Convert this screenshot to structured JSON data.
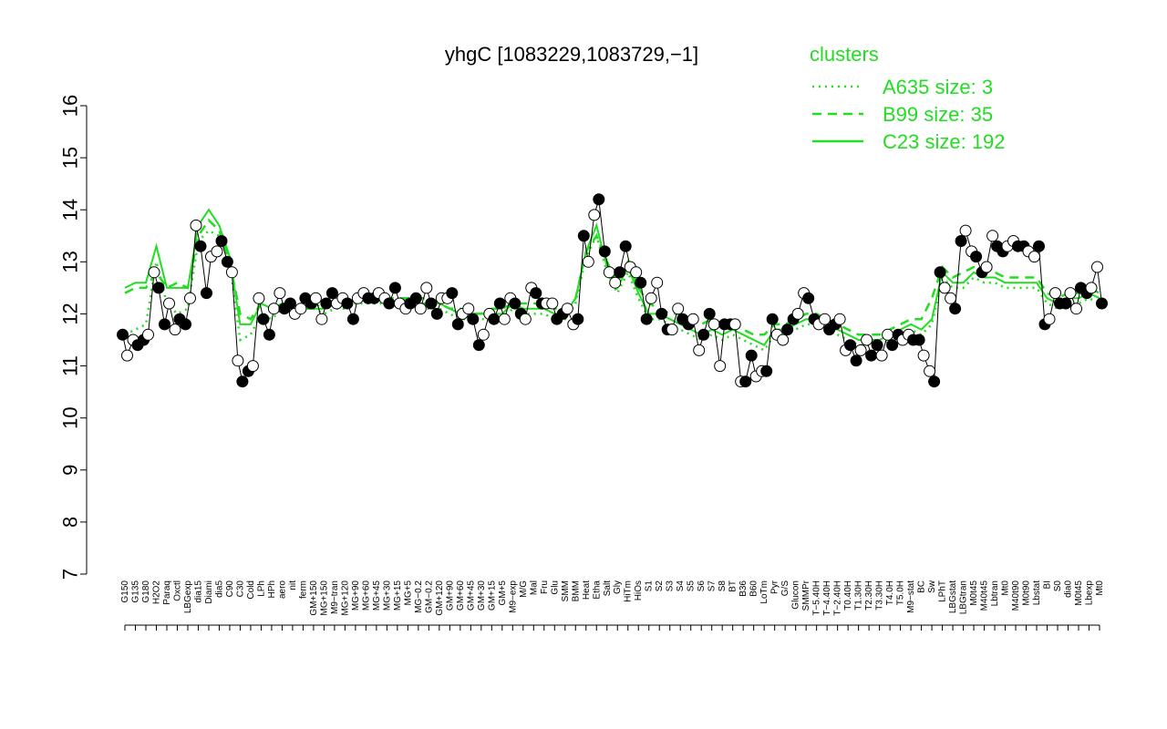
{
  "chart_data": {
    "type": "line",
    "title": "yhgC [1083229,1083729,−1]",
    "xlabel": "",
    "ylabel": "",
    "ylim": [
      7,
      16
    ],
    "yticks": [
      7,
      8,
      9,
      10,
      11,
      12,
      13,
      14,
      15,
      16
    ],
    "grid": false,
    "legend": {
      "title": "clusters",
      "placement": "top-right",
      "entries": [
        {
          "label": "A635 size: 3",
          "style": "dotted",
          "color": "#22dd22"
        },
        {
          "label": "B99 size: 35",
          "style": "dashed",
          "color": "#22dd22"
        },
        {
          "label": "C23 size: 192",
          "style": "solid",
          "color": "#22dd22"
        }
      ]
    },
    "x_tick_labels": [
      "G150",
      "G135",
      "G180",
      "H2O2",
      "Paraq",
      "Oxctl",
      "LBGexp",
      "dia15",
      "Diami",
      "dia5",
      "C90",
      "C30",
      "Cold",
      "LPh",
      "HPh",
      "aero",
      "nit",
      "ferm",
      "GM+150",
      "MG+150",
      "M9−tran",
      "MG+120",
      "MG+90",
      "MG+60",
      "MG+45",
      "MG+30",
      "MG+15",
      "MG+5",
      "MG−0.2",
      "GM−0.2",
      "GM+120",
      "GM+90",
      "GM+60",
      "GM+45",
      "GM+30",
      "GM+15",
      "GM+5",
      "M9−exp",
      "M/G",
      "Mal",
      "Fru",
      "Glu",
      "SMM",
      "BMM",
      "Heat",
      "Etha",
      "Salt",
      "Gly",
      "HiTm",
      "HiOs",
      "S1",
      "S2",
      "S3",
      "S4",
      "S5",
      "S6",
      "S7",
      "S8",
      "BT",
      "B36",
      "B60",
      "LoTm",
      "Pyr",
      "G/S",
      "Glucon",
      "SMMPr",
      "T−5.40H",
      "T−4.40H",
      "T−2.40H",
      "T0.40H",
      "T1.30H",
      "T2.30H",
      "T3.30H",
      "T4.0H",
      "T5.0H",
      "M9−stat",
      "BC",
      "Sw",
      "LPhT",
      "LBGstat",
      "LBGtran",
      "M0t45",
      "M40t45",
      "Lbtran",
      "Mt0",
      "M40t90",
      "M0t90",
      "Lbstat",
      "BI",
      "S0",
      "dia0",
      "M0t45",
      "Lbexp",
      "Mt0"
    ],
    "series": [
      {
        "name": "C23 size: 192",
        "style": "solid",
        "values": [
          12.5,
          12.6,
          12.6,
          13.3,
          12.5,
          12.5,
          12.5,
          13.7,
          14.0,
          13.7,
          13.1,
          11.8,
          11.8,
          12.2,
          12.1,
          12.2,
          12.0,
          12.1,
          12.1,
          12.1,
          12.2,
          12.2,
          12.3,
          12.3,
          12.3,
          12.3,
          12.2,
          12.3,
          12.2,
          12.2,
          12.2,
          12.1,
          12.0,
          12.0,
          12.0,
          12.0,
          12.0,
          12.2,
          12.1,
          12.1,
          12.1,
          12.0,
          12.0,
          12.3,
          13.2,
          13.7,
          12.9,
          12.5,
          12.9,
          12.4,
          12.0,
          12.0,
          11.9,
          11.8,
          11.7,
          11.6,
          11.7,
          11.6,
          11.7,
          11.6,
          11.5,
          11.4,
          11.7,
          11.7,
          11.8,
          11.9,
          11.9,
          11.8,
          11.7,
          11.6,
          11.5,
          11.5,
          11.5,
          11.6,
          11.7,
          11.8,
          11.7,
          11.9,
          12.8,
          12.6,
          12.6,
          12.8,
          12.7,
          12.7,
          12.6,
          12.6,
          12.6,
          12.6,
          12.3,
          12.2,
          12.3,
          12.3,
          12.4,
          12.3
        ]
      },
      {
        "name": "B99 size: 35",
        "style": "dashed",
        "values": [
          12.4,
          12.5,
          12.5,
          12.8,
          12.5,
          12.6,
          12.5,
          13.5,
          13.8,
          13.6,
          13.0,
          12.0,
          11.9,
          12.2,
          12.1,
          12.2,
          12.1,
          12.2,
          12.2,
          12.1,
          12.2,
          12.2,
          12.3,
          12.3,
          12.3,
          12.3,
          12.3,
          12.3,
          12.3,
          12.3,
          12.2,
          12.1,
          12.1,
          12.0,
          12.0,
          12.1,
          12.1,
          12.2,
          12.2,
          12.2,
          12.2,
          12.1,
          12.1,
          12.3,
          13.2,
          13.5,
          13.0,
          12.6,
          13.0,
          12.5,
          12.2,
          12.1,
          12.0,
          12.0,
          11.9,
          11.8,
          11.9,
          11.8,
          11.8,
          11.7,
          11.6,
          11.6,
          11.8,
          11.8,
          11.9,
          12.0,
          12.0,
          11.9,
          11.8,
          11.7,
          11.6,
          11.6,
          11.6,
          11.7,
          11.8,
          11.9,
          11.9,
          12.3,
          12.9,
          12.7,
          12.8,
          12.9,
          12.8,
          12.8,
          12.7,
          12.7,
          12.7,
          12.7,
          12.4,
          12.3,
          12.4,
          12.4,
          12.5,
          12.4
        ]
      },
      {
        "name": "A635 size: 3",
        "style": "dotted",
        "values": [
          11.6,
          11.7,
          11.8,
          13.0,
          12.2,
          12.0,
          12.1,
          13.4,
          13.6,
          13.5,
          13.0,
          11.5,
          11.6,
          12.0,
          11.9,
          12.1,
          12.0,
          12.1,
          12.1,
          12.0,
          12.1,
          12.1,
          12.2,
          12.2,
          12.2,
          12.2,
          12.1,
          12.2,
          12.1,
          12.1,
          12.1,
          12.0,
          11.9,
          11.9,
          11.9,
          11.9,
          11.9,
          12.1,
          12.0,
          12.0,
          12.0,
          11.9,
          11.9,
          12.2,
          13.1,
          13.5,
          12.8,
          12.4,
          12.8,
          12.3,
          11.9,
          11.9,
          11.8,
          11.7,
          11.6,
          11.5,
          11.6,
          11.5,
          11.6,
          11.5,
          11.4,
          11.3,
          11.6,
          11.6,
          11.7,
          11.8,
          11.8,
          11.7,
          11.6,
          11.5,
          11.4,
          11.4,
          11.4,
          11.5,
          11.6,
          11.7,
          11.6,
          11.8,
          12.7,
          12.5,
          12.5,
          12.7,
          12.6,
          12.6,
          12.5,
          12.5,
          12.5,
          12.5,
          12.2,
          12.1,
          12.2,
          12.2,
          12.3,
          12.2
        ]
      }
    ],
    "points": [
      {
        "label": "G150",
        "values": [
          11.6,
          11.2
        ]
      },
      {
        "label": "G135",
        "values": [
          11.5,
          11.4
        ]
      },
      {
        "label": "G180",
        "values": [
          11.5,
          11.6
        ]
      },
      {
        "label": "H2O2",
        "values": [
          12.8,
          12.5
        ]
      },
      {
        "label": "Paraq",
        "values": [
          11.8,
          12.2
        ]
      },
      {
        "label": "Oxctl",
        "values": [
          11.7,
          11.9
        ]
      },
      {
        "label": "LBGexp",
        "values": [
          11.8,
          12.3
        ]
      },
      {
        "label": "dia15",
        "values": [
          13.7,
          13.3
        ]
      },
      {
        "label": "Diami",
        "values": [
          12.4,
          13.1
        ]
      },
      {
        "label": "dia5",
        "values": [
          13.2,
          13.4
        ]
      },
      {
        "label": "C90",
        "values": [
          13.0,
          12.8
        ]
      },
      {
        "label": "C30",
        "values": [
          11.1,
          10.7
        ]
      },
      {
        "label": "Cold",
        "values": [
          10.9,
          11.0
        ]
      },
      {
        "label": "LPh",
        "values": [
          12.3,
          11.9
        ]
      },
      {
        "label": "HPh",
        "values": [
          11.6,
          12.1
        ]
      },
      {
        "label": "aero",
        "values": [
          12.4,
          12.1
        ]
      },
      {
        "label": "nit",
        "values": [
          12.2,
          12.0
        ]
      },
      {
        "label": "ferm",
        "values": [
          12.1,
          12.3
        ]
      },
      {
        "label": "GM+150",
        "values": [
          12.2,
          12.3
        ]
      },
      {
        "label": "MG+150",
        "values": [
          11.9,
          12.2
        ]
      },
      {
        "label": "M9−tran",
        "values": [
          12.4,
          12.2
        ]
      },
      {
        "label": "MG+120",
        "values": [
          12.3,
          12.2
        ]
      },
      {
        "label": "MG+90",
        "values": [
          11.9,
          12.3
        ]
      },
      {
        "label": "MG+60",
        "values": [
          12.4,
          12.3
        ]
      },
      {
        "label": "MG+45",
        "values": [
          12.3,
          12.4
        ]
      },
      {
        "label": "MG+30",
        "values": [
          12.3,
          12.2
        ]
      },
      {
        "label": "MG+15",
        "values": [
          12.5,
          12.2
        ]
      },
      {
        "label": "MG+5",
        "values": [
          12.1,
          12.2
        ]
      },
      {
        "label": "MG−0.2",
        "values": [
          12.3,
          12.1
        ]
      },
      {
        "label": "GM−0.2",
        "values": [
          12.5,
          12.2
        ]
      },
      {
        "label": "GM+120",
        "values": [
          12.0,
          12.3
        ]
      },
      {
        "label": "GM+90",
        "values": [
          12.3,
          12.4
        ]
      },
      {
        "label": "GM+60",
        "values": [
          11.8,
          12.0
        ]
      },
      {
        "label": "GM+45",
        "values": [
          12.1,
          11.9
        ]
      },
      {
        "label": "GM+30",
        "values": [
          11.4,
          11.6
        ]
      },
      {
        "label": "GM+15",
        "values": [
          12.0,
          11.9
        ]
      },
      {
        "label": "GM+5",
        "values": [
          12.2,
          11.9
        ]
      },
      {
        "label": "M9−exp",
        "values": [
          12.3,
          12.2
        ]
      },
      {
        "label": "M/G",
        "values": [
          12.0,
          11.9
        ]
      },
      {
        "label": "Mal",
        "values": [
          12.5,
          12.4
        ]
      },
      {
        "label": "Fru",
        "values": [
          12.2,
          12.2
        ]
      },
      {
        "label": "Glu",
        "values": [
          12.2,
          11.9
        ]
      },
      {
        "label": "SMM",
        "values": [
          12.0,
          12.1
        ]
      },
      {
        "label": "BMM",
        "values": [
          11.8,
          11.9
        ]
      },
      {
        "label": "Heat",
        "values": [
          13.5,
          13.0
        ]
      },
      {
        "label": "Etha",
        "values": [
          13.9,
          14.2
        ]
      },
      {
        "label": "Salt",
        "values": [
          13.2,
          12.8
        ]
      },
      {
        "label": "Gly",
        "values": [
          12.6,
          12.8
        ]
      },
      {
        "label": "HiTm",
        "values": [
          13.3,
          12.9
        ]
      },
      {
        "label": "HiOs",
        "values": [
          12.8,
          12.6
        ]
      },
      {
        "label": "S1",
        "values": [
          11.9,
          12.3
        ]
      },
      {
        "label": "S2",
        "values": [
          12.6,
          12.0
        ]
      },
      {
        "label": "S3",
        "values": [
          11.7,
          11.7
        ]
      },
      {
        "label": "S4",
        "values": [
          12.1,
          11.9
        ]
      },
      {
        "label": "S5",
        "values": [
          11.8,
          11.9
        ]
      },
      {
        "label": "S6",
        "values": [
          11.3,
          11.6
        ]
      },
      {
        "label": "S7",
        "values": [
          12.0,
          11.8
        ]
      },
      {
        "label": "S8",
        "values": [
          11.0,
          11.8
        ]
      },
      {
        "label": "BT",
        "values": [
          11.8,
          11.8
        ]
      },
      {
        "label": "B36",
        "values": [
          10.7,
          10.7
        ]
      },
      {
        "label": "B60",
        "values": [
          11.2,
          10.8
        ]
      },
      {
        "label": "LoTm",
        "values": [
          10.9,
          10.9
        ]
      },
      {
        "label": "Pyr",
        "values": [
          11.9,
          11.6
        ]
      },
      {
        "label": "G/S",
        "values": [
          11.5,
          11.7
        ]
      },
      {
        "label": "Glucon",
        "values": [
          11.9,
          12.0
        ]
      },
      {
        "label": "SMMPr",
        "values": [
          12.4,
          12.3
        ]
      },
      {
        "label": "T−5.40H",
        "values": [
          11.9,
          11.8
        ]
      },
      {
        "label": "T−4.40H",
        "values": [
          11.9,
          11.7
        ]
      },
      {
        "label": "T−2.40H",
        "values": [
          11.8,
          11.9
        ]
      },
      {
        "label": "T0.40H",
        "values": [
          11.3,
          11.4
        ]
      },
      {
        "label": "T1.30H",
        "values": [
          11.1,
          11.3
        ]
      },
      {
        "label": "T2.30H",
        "values": [
          11.5,
          11.2
        ]
      },
      {
        "label": "T3.30H",
        "values": [
          11.4,
          11.2
        ]
      },
      {
        "label": "T4.0H",
        "values": [
          11.6,
          11.4
        ]
      },
      {
        "label": "T5.0H",
        "values": [
          11.6,
          11.5
        ]
      },
      {
        "label": "M9−stat",
        "values": [
          11.6,
          11.5
        ]
      },
      {
        "label": "BC",
        "values": [
          11.5,
          11.2
        ]
      },
      {
        "label": "Sw",
        "values": [
          10.9,
          10.7
        ]
      },
      {
        "label": "LPhT",
        "values": [
          12.8,
          12.5
        ]
      },
      {
        "label": "LBGstat",
        "values": [
          12.3,
          12.1
        ]
      },
      {
        "label": "LBGtran",
        "values": [
          13.4,
          13.6
        ]
      },
      {
        "label": "M0t45",
        "values": [
          13.2,
          13.1
        ]
      },
      {
        "label": "M40t45",
        "values": [
          12.8,
          12.9
        ]
      },
      {
        "label": "Lbtran",
        "values": [
          13.5,
          13.3
        ]
      },
      {
        "label": "Mt0",
        "values": [
          13.2,
          13.3
        ]
      },
      {
        "label": "M40t90",
        "values": [
          13.4,
          13.3
        ]
      },
      {
        "label": "M0t90",
        "values": [
          13.3,
          13.2
        ]
      },
      {
        "label": "Lbstat",
        "values": [
          13.1,
          13.3
        ]
      },
      {
        "label": "BI",
        "values": [
          11.8,
          11.9
        ]
      },
      {
        "label": "S0",
        "values": [
          12.4,
          12.2
        ]
      },
      {
        "label": "dia0",
        "values": [
          12.2,
          12.4
        ]
      },
      {
        "label": "M0t45",
        "values": [
          12.1,
          12.5
        ]
      },
      {
        "label": "Lbexp",
        "values": [
          12.4,
          12.5
        ]
      },
      {
        "label": "Mt0",
        "values": [
          12.9,
          12.2
        ]
      }
    ]
  },
  "colors": {
    "cluster_line": "#22dd22",
    "axis": "#000000",
    "point_fill_dark": "#000000",
    "point_fill_light": "#ffffff"
  }
}
